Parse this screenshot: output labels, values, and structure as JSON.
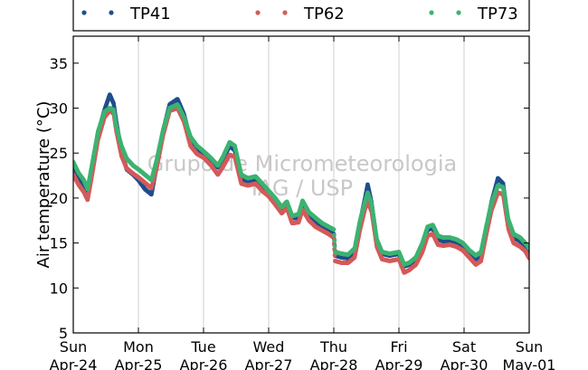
{
  "chart_data": {
    "type": "line",
    "ylabel": "Air temperature (°C)",
    "ylim": [
      5,
      38
    ],
    "yticks": [
      5,
      10,
      15,
      20,
      25,
      30,
      35
    ],
    "xlim": [
      0,
      7
    ],
    "xticks": [
      {
        "day": "Sun",
        "date": "Apr-24"
      },
      {
        "day": "Mon",
        "date": "Apr-25"
      },
      {
        "day": "Tue",
        "date": "Apr-26"
      },
      {
        "day": "Wed",
        "date": "Apr-27"
      },
      {
        "day": "Thu",
        "date": "Apr-28"
      },
      {
        "day": "Fri",
        "date": "Apr-29"
      },
      {
        "day": "Sat",
        "date": "Apr-30"
      },
      {
        "day": "Sun",
        "date": "May-01"
      }
    ],
    "grid": "vertical",
    "legend": "top",
    "watermark": [
      "Grupo de Micrometeorologia",
      "IAG / USP"
    ],
    "x_unit": "days since Apr-24 00:00",
    "series": [
      {
        "name": "TP41",
        "color": "#1f4e8c",
        "points": [
          [
            0,
            23.6
          ],
          [
            0.08,
            22.3
          ],
          [
            0.16,
            21.3
          ],
          [
            0.22,
            20.2
          ],
          [
            0.28,
            22.8
          ],
          [
            0.38,
            27.2
          ],
          [
            0.48,
            29.8
          ],
          [
            0.56,
            31.5
          ],
          [
            0.62,
            30.5
          ],
          [
            0.66,
            28.5
          ],
          [
            0.74,
            25.2
          ],
          [
            0.82,
            23.2
          ],
          [
            0.92,
            22.6
          ],
          [
            1.0,
            22.0
          ],
          [
            1.1,
            21.0
          ],
          [
            1.2,
            20.4
          ],
          [
            1.28,
            23.5
          ],
          [
            1.38,
            27.5
          ],
          [
            1.48,
            30.4
          ],
          [
            1.6,
            31.0
          ],
          [
            1.7,
            29.3
          ],
          [
            1.8,
            26.4
          ],
          [
            1.9,
            25.4
          ],
          [
            2.0,
            24.9
          ],
          [
            2.12,
            24.3
          ],
          [
            2.22,
            23.4
          ],
          [
            2.3,
            24.3
          ],
          [
            2.4,
            25.8
          ],
          [
            2.48,
            25.3
          ],
          [
            2.58,
            22.2
          ],
          [
            2.68,
            21.8
          ],
          [
            2.8,
            22.0
          ],
          [
            2.9,
            21.2
          ],
          [
            3.0,
            20.5
          ],
          [
            3.1,
            19.8
          ],
          [
            3.2,
            18.8
          ],
          [
            3.28,
            19.5
          ],
          [
            3.36,
            17.8
          ],
          [
            3.46,
            17.8
          ],
          [
            3.52,
            19.3
          ],
          [
            3.62,
            18.0
          ],
          [
            3.72,
            17.4
          ],
          [
            3.82,
            16.9
          ],
          [
            3.92,
            16.5
          ],
          [
            4.0,
            16.0
          ],
          [
            4.02,
            13.6
          ],
          [
            4.12,
            13.4
          ],
          [
            4.22,
            13.3
          ],
          [
            4.32,
            14.0
          ],
          [
            4.4,
            17.2
          ],
          [
            4.48,
            20.0
          ],
          [
            4.52,
            21.5
          ],
          [
            4.58,
            19.5
          ],
          [
            4.66,
            15.2
          ],
          [
            4.74,
            13.8
          ],
          [
            4.86,
            13.6
          ],
          [
            5.0,
            13.8
          ],
          [
            5.08,
            12.4
          ],
          [
            5.16,
            12.6
          ],
          [
            5.26,
            13.2
          ],
          [
            5.36,
            14.6
          ],
          [
            5.44,
            16.5
          ],
          [
            5.52,
            16.6
          ],
          [
            5.6,
            15.4
          ],
          [
            5.68,
            15.2
          ],
          [
            5.78,
            15.2
          ],
          [
            5.88,
            15.1
          ],
          [
            5.98,
            14.6
          ],
          [
            6.08,
            13.9
          ],
          [
            6.18,
            13.2
          ],
          [
            6.26,
            13.7
          ],
          [
            6.34,
            16.6
          ],
          [
            6.42,
            19.5
          ],
          [
            6.52,
            22.2
          ],
          [
            6.6,
            21.6
          ],
          [
            6.68,
            17.3
          ],
          [
            6.76,
            15.6
          ],
          [
            6.86,
            15.2
          ],
          [
            6.94,
            14.6
          ],
          [
            7.0,
            13.6
          ]
        ]
      },
      {
        "name": "TP62",
        "color": "#d45a5a",
        "points": [
          [
            0,
            22.6
          ],
          [
            0.08,
            21.5
          ],
          [
            0.16,
            20.7
          ],
          [
            0.22,
            19.8
          ],
          [
            0.28,
            22.2
          ],
          [
            0.38,
            26.5
          ],
          [
            0.48,
            29.0
          ],
          [
            0.56,
            29.7
          ],
          [
            0.62,
            29.4
          ],
          [
            0.66,
            27.5
          ],
          [
            0.74,
            24.7
          ],
          [
            0.82,
            23.3
          ],
          [
            0.92,
            22.7
          ],
          [
            1.0,
            22.3
          ],
          [
            1.1,
            21.7
          ],
          [
            1.2,
            21.1
          ],
          [
            1.28,
            23.3
          ],
          [
            1.38,
            27.0
          ],
          [
            1.48,
            29.7
          ],
          [
            1.6,
            30.0
          ],
          [
            1.7,
            28.5
          ],
          [
            1.8,
            25.8
          ],
          [
            1.9,
            24.9
          ],
          [
            2.0,
            24.5
          ],
          [
            2.12,
            23.6
          ],
          [
            2.22,
            22.6
          ],
          [
            2.3,
            23.5
          ],
          [
            2.4,
            24.8
          ],
          [
            2.48,
            24.6
          ],
          [
            2.58,
            21.6
          ],
          [
            2.68,
            21.4
          ],
          [
            2.8,
            21.6
          ],
          [
            2.9,
            20.8
          ],
          [
            3.0,
            20.2
          ],
          [
            3.1,
            19.3
          ],
          [
            3.2,
            18.3
          ],
          [
            3.28,
            18.9
          ],
          [
            3.36,
            17.2
          ],
          [
            3.46,
            17.3
          ],
          [
            3.52,
            18.7
          ],
          [
            3.62,
            17.5
          ],
          [
            3.72,
            16.8
          ],
          [
            3.82,
            16.4
          ],
          [
            3.92,
            16.0
          ],
          [
            4.0,
            15.6
          ],
          [
            4.02,
            13.0
          ],
          [
            4.12,
            12.8
          ],
          [
            4.22,
            12.8
          ],
          [
            4.32,
            13.4
          ],
          [
            4.4,
            16.4
          ],
          [
            4.48,
            18.8
          ],
          [
            4.52,
            19.6
          ],
          [
            4.58,
            18.5
          ],
          [
            4.66,
            14.6
          ],
          [
            4.74,
            13.2
          ],
          [
            4.86,
            13.0
          ],
          [
            5.0,
            13.2
          ],
          [
            5.08,
            11.7
          ],
          [
            5.16,
            12.0
          ],
          [
            5.26,
            12.6
          ],
          [
            5.36,
            14.0
          ],
          [
            5.44,
            15.8
          ],
          [
            5.52,
            16.0
          ],
          [
            5.6,
            14.8
          ],
          [
            5.68,
            14.7
          ],
          [
            5.78,
            14.8
          ],
          [
            5.88,
            14.6
          ],
          [
            5.98,
            14.2
          ],
          [
            6.08,
            13.4
          ],
          [
            6.18,
            12.6
          ],
          [
            6.26,
            13.0
          ],
          [
            6.34,
            15.9
          ],
          [
            6.42,
            18.6
          ],
          [
            6.52,
            20.6
          ],
          [
            6.6,
            20.4
          ],
          [
            6.68,
            16.6
          ],
          [
            6.76,
            15.0
          ],
          [
            6.86,
            14.6
          ],
          [
            6.94,
            14.1
          ],
          [
            7.0,
            13.3
          ]
        ]
      },
      {
        "name": "TP73",
        "color": "#3cb371",
        "points": [
          [
            0,
            24.0
          ],
          [
            0.08,
            22.8
          ],
          [
            0.16,
            22.0
          ],
          [
            0.22,
            21.0
          ],
          [
            0.28,
            23.4
          ],
          [
            0.38,
            27.4
          ],
          [
            0.48,
            29.6
          ],
          [
            0.56,
            30.0
          ],
          [
            0.62,
            29.8
          ],
          [
            0.66,
            28.0
          ],
          [
            0.74,
            25.8
          ],
          [
            0.82,
            24.4
          ],
          [
            0.92,
            23.6
          ],
          [
            1.0,
            23.2
          ],
          [
            1.1,
            22.6
          ],
          [
            1.2,
            22.0
          ],
          [
            1.28,
            24.2
          ],
          [
            1.38,
            27.6
          ],
          [
            1.48,
            30.0
          ],
          [
            1.6,
            30.4
          ],
          [
            1.7,
            29.0
          ],
          [
            1.8,
            26.8
          ],
          [
            1.9,
            25.8
          ],
          [
            2.0,
            25.2
          ],
          [
            2.12,
            24.4
          ],
          [
            2.22,
            23.6
          ],
          [
            2.3,
            24.6
          ],
          [
            2.4,
            26.2
          ],
          [
            2.48,
            25.8
          ],
          [
            2.58,
            22.6
          ],
          [
            2.68,
            22.2
          ],
          [
            2.8,
            22.4
          ],
          [
            2.9,
            21.6
          ],
          [
            3.0,
            20.8
          ],
          [
            3.1,
            20.0
          ],
          [
            3.2,
            19.0
          ],
          [
            3.28,
            19.6
          ],
          [
            3.36,
            18.0
          ],
          [
            3.46,
            18.2
          ],
          [
            3.52,
            19.7
          ],
          [
            3.62,
            18.4
          ],
          [
            3.72,
            17.8
          ],
          [
            3.82,
            17.2
          ],
          [
            3.92,
            16.8
          ],
          [
            4.0,
            16.5
          ],
          [
            4.02,
            14.0
          ],
          [
            4.12,
            13.8
          ],
          [
            4.22,
            13.7
          ],
          [
            4.32,
            14.4
          ],
          [
            4.4,
            17.4
          ],
          [
            4.48,
            19.6
          ],
          [
            4.52,
            20.6
          ],
          [
            4.58,
            19.4
          ],
          [
            4.66,
            15.4
          ],
          [
            4.74,
            14.0
          ],
          [
            4.86,
            13.8
          ],
          [
            5.0,
            14.0
          ],
          [
            5.08,
            12.6
          ],
          [
            5.16,
            12.8
          ],
          [
            5.26,
            13.4
          ],
          [
            5.36,
            15.0
          ],
          [
            5.44,
            16.8
          ],
          [
            5.52,
            17.0
          ],
          [
            5.6,
            15.8
          ],
          [
            5.68,
            15.6
          ],
          [
            5.78,
            15.6
          ],
          [
            5.88,
            15.4
          ],
          [
            5.98,
            15.0
          ],
          [
            6.08,
            14.2
          ],
          [
            6.18,
            13.6
          ],
          [
            6.26,
            14.0
          ],
          [
            6.34,
            16.8
          ],
          [
            6.42,
            19.4
          ],
          [
            6.52,
            21.4
          ],
          [
            6.6,
            21.2
          ],
          [
            6.68,
            17.6
          ],
          [
            6.76,
            16.0
          ],
          [
            6.86,
            15.6
          ],
          [
            6.94,
            15.0
          ],
          [
            7.0,
            14.4
          ]
        ]
      }
    ]
  }
}
